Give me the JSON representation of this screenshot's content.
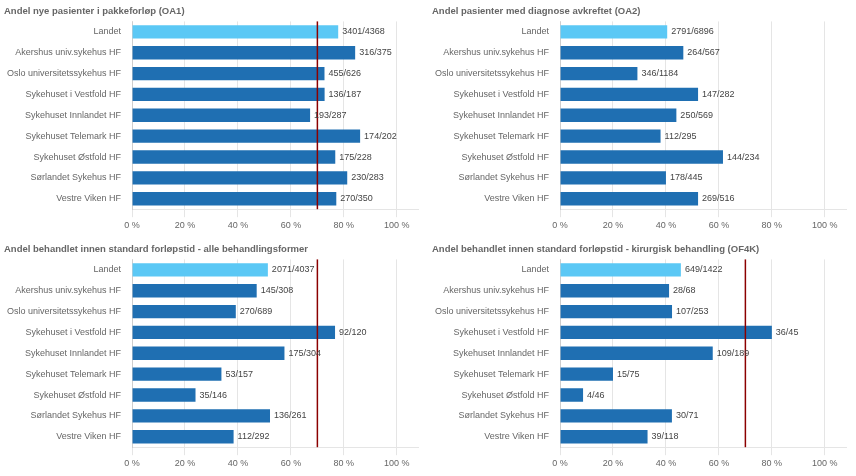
{
  "chart_data": [
    {
      "type": "bar",
      "orientation": "horizontal",
      "title": "Andel nye pasienter i pakkeforløp (OA1)",
      "categories": [
        "Landet",
        "Akershus univ.sykehus HF",
        "Oslo universitetssykehus HF",
        "Sykehuset i Vestfold HF",
        "Sykehuset Innlandet HF",
        "Sykehuset Telemark HF",
        "Sykehuset Østfold HF",
        "Sørlandet Sykehus HF",
        "Vestre Viken HF"
      ],
      "values": [
        77.8617,
        84.2667,
        72.6837,
        72.7273,
        67.2474,
        86.1386,
        76.7544,
        81.2721,
        77.1429
      ],
      "value_labels": [
        "3401/4368",
        "316/375",
        "455/626",
        "136/187",
        "193/287",
        "174/202",
        "175/228",
        "230/283",
        "270/350"
      ],
      "data_labels": true,
      "colors": [
        "#5bc8f5",
        "#1f6fb2",
        "#1f6fb2",
        "#1f6fb2",
        "#1f6fb2",
        "#1f6fb2",
        "#1f6fb2",
        "#1f6fb2",
        "#1f6fb2"
      ],
      "xlim": [
        0,
        108
      ],
      "xticks": [
        {
          "value": 0,
          "label": "0 %"
        },
        {
          "value": 20,
          "label": "20 %"
        },
        {
          "value": 40,
          "label": "40 %"
        },
        {
          "value": 60,
          "label": "60 %"
        },
        {
          "value": 80,
          "label": "80 %"
        },
        {
          "value": 100,
          "label": "100 %"
        }
      ],
      "grid": true,
      "ref_line": {
        "value": 70,
        "color": "#8b0000"
      }
    },
    {
      "type": "bar",
      "orientation": "horizontal",
      "title": "Andel pasienter med diagnose avkreftet (OA2)",
      "categories": [
        "Landet",
        "Akershus univ.sykehus HF",
        "Oslo universitetssykehus HF",
        "Sykehuset i Vestfold HF",
        "Sykehuset Innlandet HF",
        "Sykehuset Telemark HF",
        "Sykehuset Østfold HF",
        "Sørlandet Sykehus HF",
        "Vestre Viken HF"
      ],
      "values": [
        40.4727,
        46.5608,
        29.223,
        52.1277,
        43.9367,
        37.9661,
        61.5385,
        40,
        52.1318
      ],
      "value_labels": [
        "2791/6896",
        "264/567",
        "346/1184",
        "147/282",
        "250/569",
        "112/295",
        "144/234",
        "178/445",
        "269/516"
      ],
      "data_labels": true,
      "colors": [
        "#5bc8f5",
        "#1f6fb2",
        "#1f6fb2",
        "#1f6fb2",
        "#1f6fb2",
        "#1f6fb2",
        "#1f6fb2",
        "#1f6fb2",
        "#1f6fb2"
      ],
      "xlim": [
        0,
        108
      ],
      "xticks": [
        {
          "value": 0,
          "label": "0 %"
        },
        {
          "value": 20,
          "label": "20 %"
        },
        {
          "value": 40,
          "label": "40 %"
        },
        {
          "value": 60,
          "label": "60 %"
        },
        {
          "value": 80,
          "label": "80 %"
        },
        {
          "value": 100,
          "label": "100 %"
        }
      ],
      "grid": true
    },
    {
      "type": "bar",
      "orientation": "horizontal",
      "title": "Andel behandlet innen standard forløpstid - alle behandlingsformer",
      "categories": [
        "Landet",
        "Akershus univ.sykehus HF",
        "Oslo universitetssykehus HF",
        "Sykehuset i Vestfold HF",
        "Sykehuset Innlandet HF",
        "Sykehuset Telemark HF",
        "Sykehuset Østfold HF",
        "Sørlandet Sykehus HF",
        "Vestre Viken HF"
      ],
      "values": [
        51.3005,
        47.0779,
        39.1872,
        76.6667,
        57.5658,
        33.758,
        23.9726,
        52.1073,
        38.3562
      ],
      "value_labels": [
        "2071/4037",
        "145/308",
        "270/689",
        "92/120",
        "175/304",
        "53/157",
        "35/146",
        "136/261",
        "112/292"
      ],
      "data_labels": true,
      "colors": [
        "#5bc8f5",
        "#1f6fb2",
        "#1f6fb2",
        "#1f6fb2",
        "#1f6fb2",
        "#1f6fb2",
        "#1f6fb2",
        "#1f6fb2",
        "#1f6fb2"
      ],
      "xlim": [
        0,
        108
      ],
      "xticks": [
        {
          "value": 0,
          "label": "0 %"
        },
        {
          "value": 20,
          "label": "20 %"
        },
        {
          "value": 40,
          "label": "40 %"
        },
        {
          "value": 60,
          "label": "60 %"
        },
        {
          "value": 80,
          "label": "80 %"
        },
        {
          "value": 100,
          "label": "100 %"
        }
      ],
      "grid": true,
      "ref_line": {
        "value": 70,
        "color": "#8b0000"
      }
    },
    {
      "type": "bar",
      "orientation": "horizontal",
      "title": "Andel behandlet innen standard forløpstid - kirurgisk behandling (OF4K)",
      "categories": [
        "Landet",
        "Akershus univ.sykehus HF",
        "Oslo universitetssykehus HF",
        "Sykehuset i Vestfold HF",
        "Sykehuset Innlandet HF",
        "Sykehuset Telemark HF",
        "Sykehuset Østfold HF",
        "Sørlandet Sykehus HF",
        "Vestre Viken HF"
      ],
      "values": [
        45.6399,
        41.1765,
        42.2925,
        80,
        57.672,
        20,
        8.6957,
        42.2535,
        33.0508
      ],
      "value_labels": [
        "649/1422",
        "28/68",
        "107/253",
        "36/45",
        "109/189",
        "15/75",
        "4/46",
        "30/71",
        "39/118"
      ],
      "data_labels": true,
      "colors": [
        "#5bc8f5",
        "#1f6fb2",
        "#1f6fb2",
        "#1f6fb2",
        "#1f6fb2",
        "#1f6fb2",
        "#1f6fb2",
        "#1f6fb2",
        "#1f6fb2"
      ],
      "xlim": [
        0,
        108
      ],
      "xticks": [
        {
          "value": 0,
          "label": "0 %"
        },
        {
          "value": 20,
          "label": "20 %"
        },
        {
          "value": 40,
          "label": "40 %"
        },
        {
          "value": 60,
          "label": "60 %"
        },
        {
          "value": 80,
          "label": "80 %"
        },
        {
          "value": 100,
          "label": "100 %"
        }
      ],
      "grid": true,
      "ref_line": {
        "value": 70,
        "color": "#8b0000"
      }
    }
  ]
}
